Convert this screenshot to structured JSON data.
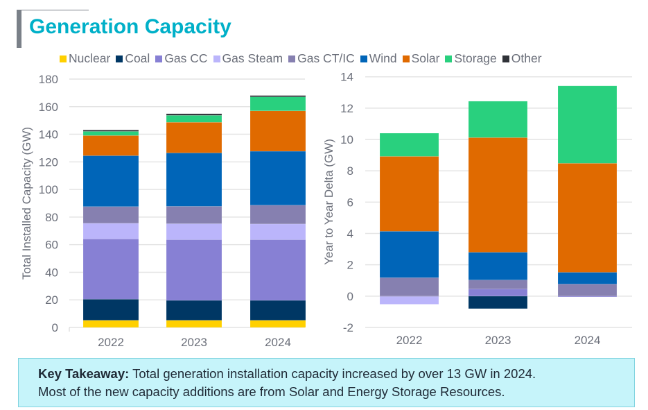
{
  "header": {
    "title": "Generation Capacity"
  },
  "legend": [
    {
      "label": "Nuclear",
      "color": "#ffd000"
    },
    {
      "label": "Coal",
      "color": "#003764"
    },
    {
      "label": "Gas CC",
      "color": "#8780d4"
    },
    {
      "label": "Gas Steam",
      "color": "#bbb5fb"
    },
    {
      "label": "Gas CT/IC",
      "color": "#8680b0"
    },
    {
      "label": "Wind",
      "color": "#0065b8"
    },
    {
      "label": "Solar",
      "color": "#e06a00"
    },
    {
      "label": "Storage",
      "color": "#29d07e"
    },
    {
      "label": "Other",
      "color": "#2f3238"
    }
  ],
  "chart_data": [
    {
      "type": "bar",
      "stacked": true,
      "ylabel": "Total Installed Capacity (GW)",
      "xlabel": "",
      "ylim": [
        0,
        180
      ],
      "yticks": [
        0,
        20,
        40,
        60,
        80,
        100,
        120,
        140,
        160,
        180
      ],
      "grid": true,
      "categories": [
        "2022",
        "2023",
        "2024"
      ],
      "series": [
        {
          "name": "Nuclear",
          "values": [
            5.2,
            5.2,
            5.2
          ]
        },
        {
          "name": "Coal",
          "values": [
            15.3,
            14.4,
            14.4
          ]
        },
        {
          "name": "Gas CC",
          "values": [
            43.6,
            44.0,
            44.0
          ]
        },
        {
          "name": "Gas Steam",
          "values": [
            11.4,
            11.6,
            11.4
          ]
        },
        {
          "name": "Gas CT/IC",
          "values": [
            12.1,
            12.6,
            13.6
          ]
        },
        {
          "name": "Wind",
          "values": [
            36.9,
            38.7,
            39.1
          ]
        },
        {
          "name": "Solar",
          "values": [
            14.6,
            22.2,
            29.3
          ]
        },
        {
          "name": "Storage",
          "values": [
            3.0,
            5.0,
            10.1
          ]
        },
        {
          "name": "Other",
          "values": [
            1.0,
            1.2,
            1.0
          ]
        }
      ]
    },
    {
      "type": "bar",
      "stacked": true,
      "ylabel": "Year to Year Delta (GW)",
      "xlabel": "",
      "ylim": [
        -2,
        14
      ],
      "yticks": [
        -2,
        0,
        2,
        4,
        6,
        8,
        10,
        12,
        14
      ],
      "grid": true,
      "categories": [
        "2022",
        "2023",
        "2024"
      ],
      "series": [
        {
          "name": "Nuclear",
          "values": [
            0,
            0,
            0
          ]
        },
        {
          "name": "Coal",
          "values": [
            0,
            -0.8,
            0
          ]
        },
        {
          "name": "Gas CC",
          "values": [
            -0.04,
            0.46,
            -0.05
          ]
        },
        {
          "name": "Gas Steam",
          "values": [
            -0.48,
            0,
            0
          ]
        },
        {
          "name": "Gas CT/IC",
          "values": [
            1.18,
            0.57,
            0.77
          ]
        },
        {
          "name": "Wind",
          "values": [
            2.96,
            1.77,
            0.75
          ]
        },
        {
          "name": "Solar",
          "values": [
            4.78,
            7.32,
            6.96
          ]
        },
        {
          "name": "Storage",
          "values": [
            1.48,
            2.32,
            4.94
          ]
        },
        {
          "name": "Other",
          "values": [
            0,
            0,
            0
          ]
        }
      ]
    }
  ],
  "takeaway": {
    "label": "Key Takeaway:",
    "line1": " Total generation installation capacity increased by over 13 GW in 2024.",
    "line2": "Most of the new capacity additions are from Solar and Energy Storage Resources."
  }
}
